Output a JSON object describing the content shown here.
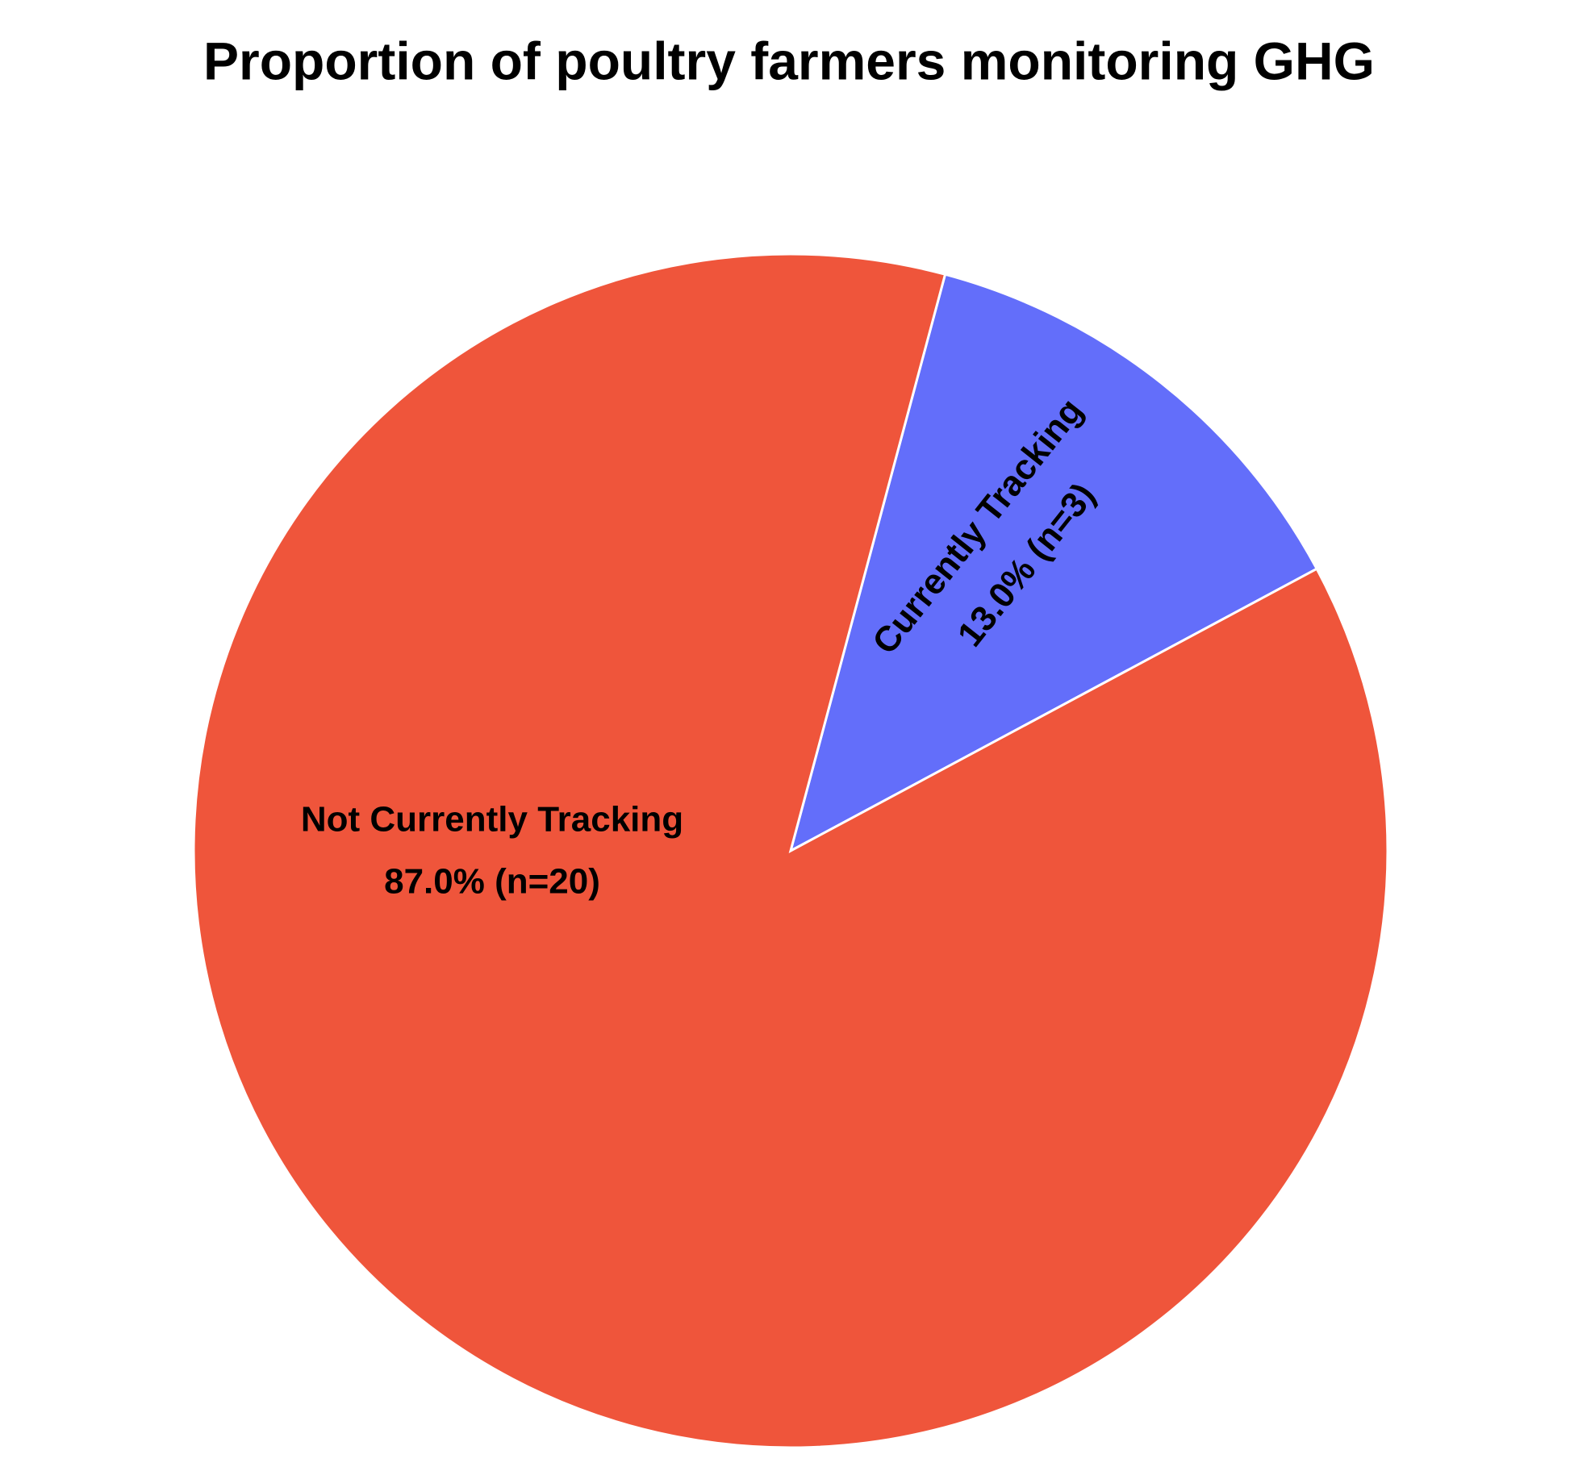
{
  "chart_data": {
    "type": "pie",
    "title": "Proportion of poultry farmers monitoring GHG",
    "categories": [
      "Currently Tracking",
      "Not Currently Tracking"
    ],
    "values": [
      13,
      87
    ],
    "value_labels": [
      "13.0% (n=3)",
      "87.0% (n=20)"
    ],
    "colors": [
      "#636efa",
      "#ef553b"
    ]
  }
}
